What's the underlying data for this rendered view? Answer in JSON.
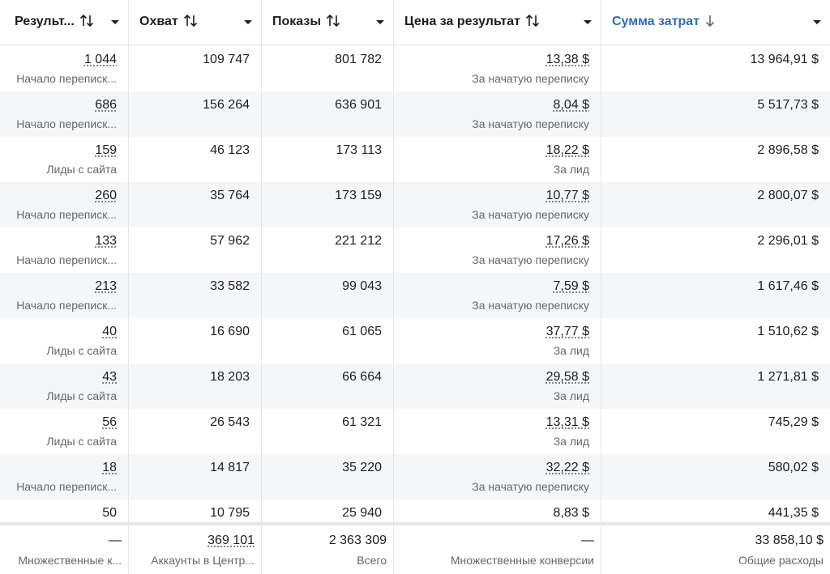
{
  "table": {
    "headers": [
      "Результ...",
      "Охват",
      "Показы",
      "Цена за результат",
      "Сумма затрат"
    ],
    "rows": [
      [
        {
          "value": "1 044",
          "sub": "Начало переписк..."
        },
        {
          "value": "109 747"
        },
        {
          "value": "801 782"
        },
        {
          "value": "13,38 $",
          "sub": "За начатую переписку"
        },
        {
          "value": "13 964,91 $"
        }
      ],
      [
        {
          "value": "686",
          "sub": "Начало переписк..."
        },
        {
          "value": "156 264"
        },
        {
          "value": "636 901"
        },
        {
          "value": "8,04 $",
          "sub": "За начатую переписку"
        },
        {
          "value": "5 517,73 $"
        }
      ],
      [
        {
          "value": "159",
          "sub": "Лиды с сайта"
        },
        {
          "value": "46 123"
        },
        {
          "value": "173 113"
        },
        {
          "value": "18,22 $",
          "sub": "За лид"
        },
        {
          "value": "2 896,58 $"
        }
      ],
      [
        {
          "value": "260",
          "sub": "Начало переписк..."
        },
        {
          "value": "35 764"
        },
        {
          "value": "173 159"
        },
        {
          "value": "10,77 $",
          "sub": "За начатую переписку"
        },
        {
          "value": "2 800,07 $"
        }
      ],
      [
        {
          "value": "133",
          "sub": "Начало переписк..."
        },
        {
          "value": "57 962"
        },
        {
          "value": "221 212"
        },
        {
          "value": "17,26 $",
          "sub": "За начатую переписку"
        },
        {
          "value": "2 296,01 $"
        }
      ],
      [
        {
          "value": "213",
          "sub": "Начало переписк..."
        },
        {
          "value": "33 582"
        },
        {
          "value": "99 043"
        },
        {
          "value": "7,59 $",
          "sub": "За начатую переписку"
        },
        {
          "value": "1 617,46 $"
        }
      ],
      [
        {
          "value": "40",
          "sub": "Лиды с сайта"
        },
        {
          "value": "16 690"
        },
        {
          "value": "61 065"
        },
        {
          "value": "37,77 $",
          "sub": "За лид"
        },
        {
          "value": "1 510,62 $"
        }
      ],
      [
        {
          "value": "43",
          "sub": "Лиды с сайта"
        },
        {
          "value": "18 203"
        },
        {
          "value": "66 664"
        },
        {
          "value": "29,58 $",
          "sub": "За лид"
        },
        {
          "value": "1 271,81 $"
        }
      ],
      [
        {
          "value": "56",
          "sub": "Лиды с сайта"
        },
        {
          "value": "26 543"
        },
        {
          "value": "61 321"
        },
        {
          "value": "13,31 $",
          "sub": "За лид"
        },
        {
          "value": "745,29 $"
        }
      ],
      [
        {
          "value": "18",
          "sub": "Начало переписк..."
        },
        {
          "value": "14 817"
        },
        {
          "value": "35 220"
        },
        {
          "value": "32,22 $",
          "sub": "За начатую переписку"
        },
        {
          "value": "580,02 $"
        }
      ],
      [
        {
          "value": "50"
        },
        {
          "value": "10 795"
        },
        {
          "value": "25 940"
        },
        {
          "value": "8,83 $"
        },
        {
          "value": "441,35 $"
        }
      ]
    ],
    "footer": [
      {
        "value": "—",
        "sub": "Множественные к..."
      },
      {
        "value": "369 101",
        "sub": "Аккаунты в Центр..."
      },
      {
        "value": "2 363 309",
        "sub": "Всего"
      },
      {
        "value": "—",
        "sub": "Множественные конверсии"
      },
      {
        "value": "33 858,10 $",
        "sub": "Общие расходы"
      }
    ]
  }
}
